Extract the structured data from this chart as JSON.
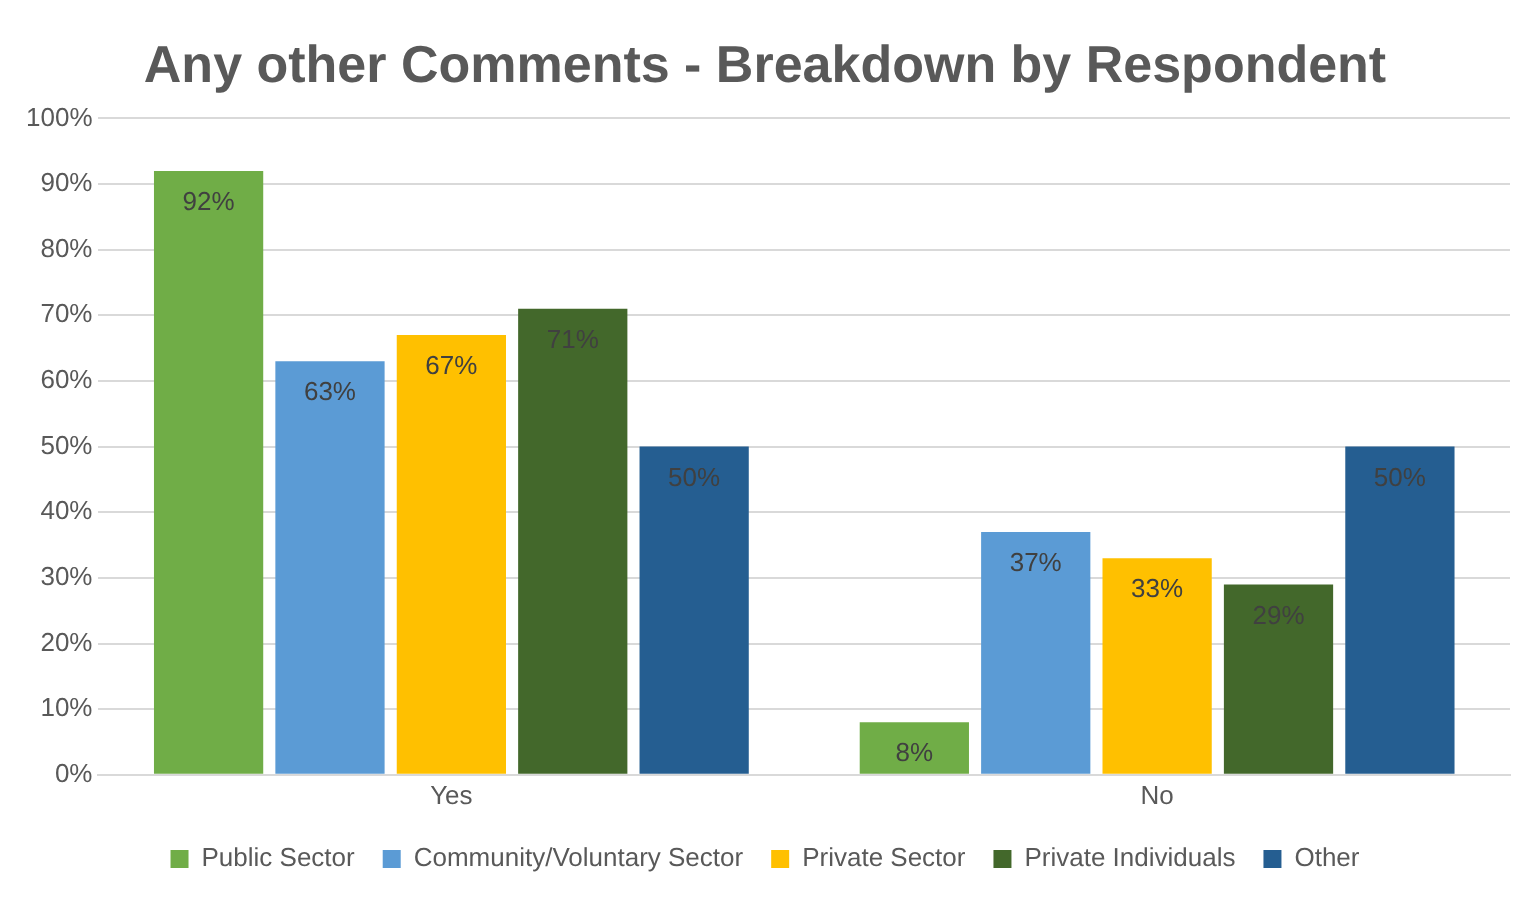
{
  "chart_data": {
    "type": "bar",
    "title": "Any other Comments - Breakdown by Respondent",
    "categories": [
      "Yes",
      "No"
    ],
    "series": [
      {
        "name": "Public Sector",
        "color": "#70ad47",
        "values": [
          92,
          8
        ],
        "value_labels": [
          "92%",
          "8%"
        ]
      },
      {
        "name": "Community/Voluntary Sector",
        "color": "#5b9bd5",
        "values": [
          63,
          37
        ],
        "value_labels": [
          "63%",
          "37%"
        ]
      },
      {
        "name": "Private Sector",
        "color": "#ffc000",
        "values": [
          67,
          33
        ],
        "value_labels": [
          "67%",
          "33%"
        ]
      },
      {
        "name": "Private Individuals",
        "color": "#43682b",
        "values": [
          71,
          29
        ],
        "value_labels": [
          "71%",
          "29%"
        ]
      },
      {
        "name": "Other",
        "color": "#255e91",
        "values": [
          50,
          50
        ],
        "value_labels": [
          "50%",
          "50%"
        ]
      }
    ],
    "ylim": [
      0,
      100
    ],
    "yticks": [
      {
        "value": 0,
        "label": "0%"
      },
      {
        "value": 10,
        "label": "10%"
      },
      {
        "value": 20,
        "label": "20%"
      },
      {
        "value": 30,
        "label": "30%"
      },
      {
        "value": 40,
        "label": "40%"
      },
      {
        "value": 50,
        "label": "50%"
      },
      {
        "value": 60,
        "label": "60%"
      },
      {
        "value": 70,
        "label": "70%"
      },
      {
        "value": 80,
        "label": "80%"
      },
      {
        "value": 90,
        "label": "90%"
      },
      {
        "value": 100,
        "label": "100%"
      }
    ],
    "grid": "y",
    "legend": "bottom"
  }
}
